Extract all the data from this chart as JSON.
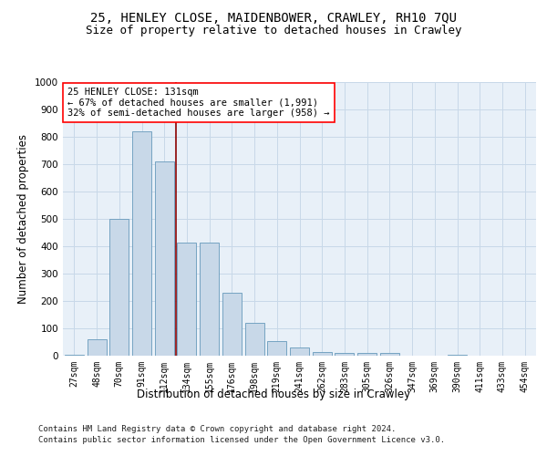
{
  "title_line1": "25, HENLEY CLOSE, MAIDENBOWER, CRAWLEY, RH10 7QU",
  "title_line2": "Size of property relative to detached houses in Crawley",
  "xlabel": "Distribution of detached houses by size in Crawley",
  "ylabel": "Number of detached properties",
  "categories": [
    "27sqm",
    "48sqm",
    "70sqm",
    "91sqm",
    "112sqm",
    "134sqm",
    "155sqm",
    "176sqm",
    "198sqm",
    "219sqm",
    "241sqm",
    "262sqm",
    "283sqm",
    "305sqm",
    "326sqm",
    "347sqm",
    "369sqm",
    "390sqm",
    "411sqm",
    "433sqm",
    "454sqm"
  ],
  "values": [
    5,
    60,
    500,
    820,
    710,
    415,
    415,
    230,
    120,
    55,
    30,
    15,
    10,
    10,
    10,
    0,
    0,
    5,
    0,
    0,
    0
  ],
  "bar_color": "#c8d8e8",
  "bar_edge_color": "#6699bb",
  "vline_color": "#8b0000",
  "annotation_text": "25 HENLEY CLOSE: 131sqm\n← 67% of detached houses are smaller (1,991)\n32% of semi-detached houses are larger (958) →",
  "annotation_box_color": "white",
  "annotation_edge_color": "red",
  "ylim": [
    0,
    1000
  ],
  "yticks": [
    0,
    100,
    200,
    300,
    400,
    500,
    600,
    700,
    800,
    900,
    1000
  ],
  "grid_color": "#c8d8e8",
  "bg_color": "#e8f0f8",
  "footer": "Contains HM Land Registry data © Crown copyright and database right 2024.\nContains public sector information licensed under the Open Government Licence v3.0.",
  "title_fontsize": 10,
  "subtitle_fontsize": 9,
  "tick_fontsize": 7,
  "label_fontsize": 8.5,
  "annotation_fontsize": 7.5,
  "footer_fontsize": 6.5
}
